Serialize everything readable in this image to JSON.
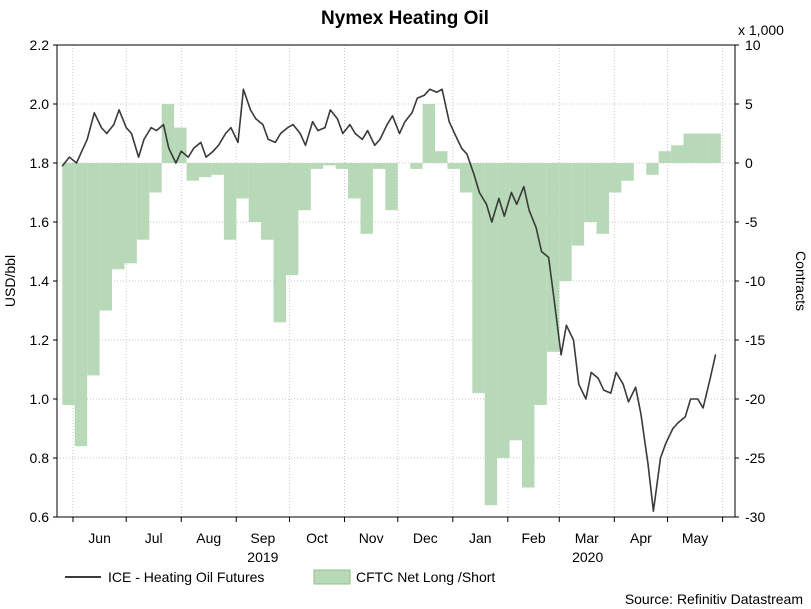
{
  "chart_data": {
    "type": "line",
    "title": "Nymex Heating Oil",
    "ylabel": "USD/bbl",
    "y2label": "Contracts",
    "y2_multiplier_label": "x 1,000",
    "ylim": [
      0.6,
      2.2
    ],
    "y2lim": [
      -30,
      10
    ],
    "yticks": [
      "0.6",
      "0.8",
      "1.0",
      "1.2",
      "1.4",
      "1.6",
      "1.8",
      "2.0",
      "2.2"
    ],
    "y2ticks": [
      "-30",
      "-25",
      "-20",
      "-15",
      "-10",
      "-5",
      "0",
      "5",
      "10"
    ],
    "x_months": [
      "Jun",
      "Jul",
      "Aug",
      "Sep",
      "Oct",
      "Nov",
      "Dec",
      "Jan",
      "Feb",
      "Mar",
      "Apr",
      "May"
    ],
    "x_years": [
      "2019",
      "2020"
    ],
    "legend": {
      "position": "bottom-left"
    },
    "source": "Source: Refinitiv Datastream",
    "colors": {
      "line": "#3a3a3a",
      "area_fill": "#b7d9b7",
      "area_stroke": "#8cc08c"
    },
    "series": [
      {
        "name": "ICE - Heating Oil Futures",
        "kind": "line",
        "axis": "left",
        "x": [
          "2019-05-26",
          "2019-05-30",
          "2019-06-03",
          "2019-06-06",
          "2019-06-09",
          "2019-06-13",
          "2019-06-17",
          "2019-06-20",
          "2019-06-24",
          "2019-06-27",
          "2019-07-01",
          "2019-07-04",
          "2019-07-08",
          "2019-07-11",
          "2019-07-15",
          "2019-07-18",
          "2019-07-22",
          "2019-07-25",
          "2019-07-29",
          "2019-08-01",
          "2019-08-05",
          "2019-08-08",
          "2019-08-12",
          "2019-08-15",
          "2019-08-19",
          "2019-08-22",
          "2019-08-26",
          "2019-08-29",
          "2019-09-02",
          "2019-09-05",
          "2019-09-09",
          "2019-09-12",
          "2019-09-16",
          "2019-09-19",
          "2019-09-23",
          "2019-09-26",
          "2019-09-30",
          "2019-10-03",
          "2019-10-07",
          "2019-10-10",
          "2019-10-14",
          "2019-10-17",
          "2019-10-21",
          "2019-10-24",
          "2019-10-28",
          "2019-10-31",
          "2019-11-04",
          "2019-11-07",
          "2019-11-11",
          "2019-11-14",
          "2019-11-18",
          "2019-11-21",
          "2019-11-25",
          "2019-11-28",
          "2019-12-02",
          "2019-12-05",
          "2019-12-09",
          "2019-12-12",
          "2019-12-16",
          "2019-12-19",
          "2019-12-23",
          "2019-12-26",
          "2019-12-30",
          "2020-01-02",
          "2020-01-06",
          "2020-01-09",
          "2020-01-13",
          "2020-01-16",
          "2020-01-20",
          "2020-01-23",
          "2020-01-27",
          "2020-01-30",
          "2020-02-03",
          "2020-02-06",
          "2020-02-10",
          "2020-02-13",
          "2020-02-17",
          "2020-02-20",
          "2020-02-24",
          "2020-02-27",
          "2020-03-02",
          "2020-03-05",
          "2020-03-09",
          "2020-03-12",
          "2020-03-16",
          "2020-03-19",
          "2020-03-23",
          "2020-03-26",
          "2020-03-30",
          "2020-04-02",
          "2020-04-06",
          "2020-04-09",
          "2020-04-13",
          "2020-04-16",
          "2020-04-20",
          "2020-04-23",
          "2020-04-27",
          "2020-04-30",
          "2020-05-04",
          "2020-05-07",
          "2020-05-11",
          "2020-05-14",
          "2020-05-18",
          "2020-05-21",
          "2020-05-25",
          "2020-05-28"
        ],
        "values": [
          1.79,
          1.82,
          1.8,
          1.84,
          1.88,
          1.97,
          1.92,
          1.9,
          1.93,
          1.98,
          1.92,
          1.9,
          1.82,
          1.88,
          1.92,
          1.91,
          1.93,
          1.85,
          1.8,
          1.84,
          1.82,
          1.85,
          1.87,
          1.82,
          1.84,
          1.86,
          1.9,
          1.92,
          1.87,
          2.05,
          1.98,
          1.95,
          1.93,
          1.88,
          1.87,
          1.9,
          1.92,
          1.93,
          1.9,
          1.86,
          1.94,
          1.91,
          1.92,
          1.98,
          1.95,
          1.9,
          1.93,
          1.9,
          1.88,
          1.91,
          1.86,
          1.88,
          1.93,
          1.96,
          1.9,
          1.94,
          1.97,
          2.02,
          2.03,
          2.05,
          2.04,
          2.05,
          1.94,
          1.9,
          1.85,
          1.83,
          1.76,
          1.7,
          1.66,
          1.6,
          1.68,
          1.62,
          1.7,
          1.66,
          1.72,
          1.64,
          1.58,
          1.5,
          1.48,
          1.34,
          1.15,
          1.25,
          1.2,
          1.05,
          1.0,
          1.09,
          1.07,
          1.03,
          1.02,
          1.09,
          1.05,
          0.99,
          1.04,
          0.95,
          0.78,
          0.62,
          0.8,
          0.85,
          0.9,
          0.92,
          0.94,
          1.0,
          1.0,
          0.97,
          1.07,
          1.15
        ]
      },
      {
        "name": "CFTC Net Long /Short",
        "kind": "area",
        "axis": "right",
        "x": [
          "2019-05-26",
          "2019-06-02",
          "2019-06-09",
          "2019-06-16",
          "2019-06-23",
          "2019-06-30",
          "2019-07-07",
          "2019-07-14",
          "2019-07-21",
          "2019-07-28",
          "2019-08-04",
          "2019-08-11",
          "2019-08-18",
          "2019-08-25",
          "2019-09-01",
          "2019-09-08",
          "2019-09-15",
          "2019-09-22",
          "2019-09-29",
          "2019-10-06",
          "2019-10-13",
          "2019-10-20",
          "2019-10-27",
          "2019-11-03",
          "2019-11-10",
          "2019-11-17",
          "2019-11-24",
          "2019-12-01",
          "2019-12-08",
          "2019-12-15",
          "2019-12-22",
          "2019-12-29",
          "2020-01-05",
          "2020-01-12",
          "2020-01-19",
          "2020-01-26",
          "2020-02-02",
          "2020-02-09",
          "2020-02-16",
          "2020-02-23",
          "2020-03-01",
          "2020-03-08",
          "2020-03-15",
          "2020-03-22",
          "2020-03-29",
          "2020-04-05",
          "2020-04-12",
          "2020-04-19",
          "2020-04-26",
          "2020-05-03",
          "2020-05-10",
          "2020-05-17",
          "2020-05-24"
        ],
        "values": [
          -20.5,
          -24,
          -18,
          -12.5,
          -9,
          -8.5,
          -6.5,
          -2.5,
          5,
          3,
          -1.5,
          -1.2,
          -1,
          -6.5,
          -3,
          -5,
          -6.5,
          -13.5,
          -9.5,
          -4,
          -0.5,
          -0.2,
          -0.5,
          -3,
          -6,
          -0.5,
          -4,
          0,
          -0.5,
          5,
          1,
          -0.5,
          -2.5,
          -19.5,
          -29,
          -25,
          -23.5,
          -27.5,
          -20.5,
          -16,
          -10,
          -7,
          -5,
          -6,
          -2.5,
          -1.5,
          0,
          -1,
          1,
          1.5,
          2.5,
          2.5,
          2.5
        ]
      }
    ]
  }
}
